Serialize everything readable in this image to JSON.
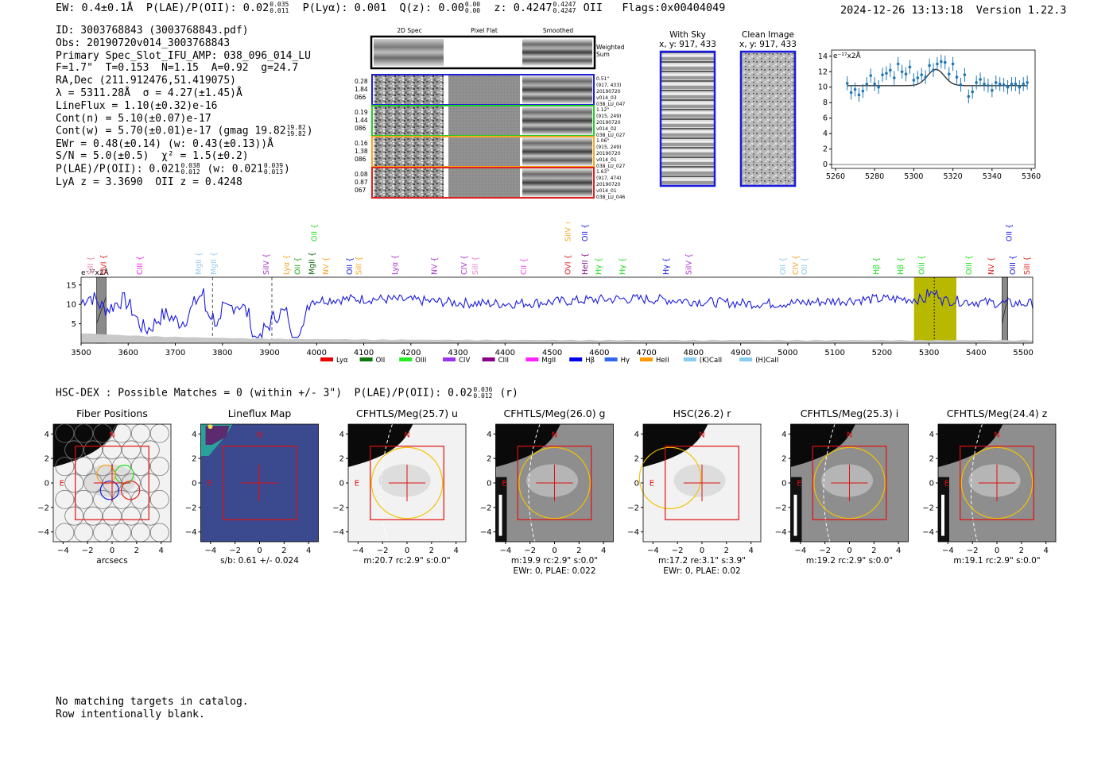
{
  "header": {
    "ew": "EW: 0.4±0.1Å",
    "plae_label": "P(LAE)/P(OII): 0.02",
    "plae_hi": "0.035",
    "plae_lo": "0.011",
    "plya": "P(Lyα): 0.001",
    "qz_label": "Q(z): 0.00",
    "qz_hi": "0.00",
    "qz_lo": "0.00",
    "z_label": "z: 0.4247",
    "z_hi": "0.4247",
    "z_lo": "0.4247",
    "z_line": "OII",
    "flags": "Flags:0x00404049",
    "datetime": "2024-12-26 13:13:18",
    "version": "Version 1.22.3"
  },
  "info": {
    "id": "ID: 3003768843 (3003768843.pdf)",
    "obs": "Obs: 20190720v014_3003768843",
    "primary": "Primary Spec_Slot_IFU_AMP: 038_096_014_LU",
    "fit": "F=1.7\"  T=0.153  N=1.15  A=0.92  g=24.7",
    "radec": "RA,Dec (211.912476,51.419075)",
    "lambda": "λ = 5311.28Å  σ = 4.27(±1.45)Å",
    "lineflux": "LineFlux = 1.10(±0.32)e-16",
    "cont_n": "Cont(n) = 5.10(±0.07)e-17",
    "cont_w_label": "Cont(w) = 5.70(±0.01)e-17 (gmag 19.82",
    "cont_w_hi": "19.82",
    "cont_w_lo": "19.82",
    "cont_w_tail": ")",
    "ewr": "EWr = 0.48(±0.14) (w: 0.43(±0.13))Å",
    "sn": "S/N = 5.0(±0.5)  χ² = 1.5(±0.2)",
    "plae_label": "P(LAE)/P(OII): 0.021",
    "plae_hi": "0.038",
    "plae_lo": "0.012",
    "plae_w": "(w: 0.021",
    "plae_w_hi": "0.039",
    "plae_w_lo": "0.013",
    "plae_w_tail": ")",
    "lyaz": "LyA z = 3.3690  OII z = 0.4248"
  },
  "spec2d": {
    "col_titles": [
      "2D Spec",
      "Pixel Flat",
      "Smoothed"
    ],
    "weighted_sum": [
      "Weighted",
      "Sum"
    ],
    "rows": [
      {
        "left": [
          "0.28",
          "1.84",
          "066"
        ],
        "right": [
          "0.51\"",
          "(917, 433)",
          "20190720",
          "v014_03",
          "038_LU_047"
        ],
        "color": "#1f1fd8"
      },
      {
        "left": [
          "0.19",
          "1.44",
          "086"
        ],
        "right": [
          "1.12\"",
          "(915, 249)",
          "20190720",
          "v014_02",
          "038_LU_027"
        ],
        "color": "#22cc22"
      },
      {
        "left": [
          "0.16",
          "1.38",
          "086"
        ],
        "right": [
          "1.06\"",
          "(915, 249)",
          "20190720",
          "v014_01",
          "038_LU_027"
        ],
        "color": "#f5a623"
      },
      {
        "left": [
          "0.08",
          "0.87",
          "067"
        ],
        "right": [
          "1.63\"",
          "(917, 474)",
          "20190720",
          "v014_01",
          "038_LU_046"
        ],
        "color": "#e02020"
      }
    ]
  },
  "sky": {
    "with_sky_title": "With Sky",
    "with_sky_xy": "x, y: 917, 433",
    "clean_title": "Clean Image",
    "clean_xy": "x, y: 917, 433"
  },
  "chart_data": [
    {
      "type": "scatter",
      "title": "Line fit zoom",
      "ylabel_text": "e⁻¹⁷x2Å",
      "xlim": [
        5258,
        5362
      ],
      "ylim": [
        -0.5,
        14.8
      ],
      "xticks": [
        5260,
        5280,
        5300,
        5320,
        5340,
        5360
      ],
      "yticks": [
        0,
        2,
        4,
        6,
        8,
        10,
        12,
        14
      ],
      "x": [
        5266,
        5268,
        5270,
        5272,
        5274,
        5276,
        5278,
        5280,
        5282,
        5284,
        5286,
        5288,
        5290,
        5292,
        5294,
        5296,
        5298,
        5300,
        5302,
        5304,
        5306,
        5308,
        5310,
        5312,
        5314,
        5316,
        5318,
        5320,
        5322,
        5324,
        5326,
        5328,
        5330,
        5332,
        5334,
        5336,
        5338,
        5340,
        5342,
        5344,
        5346,
        5348,
        5350,
        5352,
        5354,
        5356,
        5358
      ],
      "y": [
        10.5,
        9.3,
        9.7,
        9.0,
        9.5,
        10.4,
        11.5,
        10.4,
        10.0,
        11.6,
        11.8,
        12.2,
        11.2,
        13.0,
        12.0,
        11.7,
        12.6,
        10.9,
        11.2,
        11.6,
        11.3,
        12.8,
        12.2,
        13.0,
        13.3,
        13.2,
        11.7,
        13.0,
        11.3,
        10.3,
        11.6,
        8.8,
        9.4,
        10.6,
        11.0,
        10.4,
        10.2,
        9.6,
        10.6,
        10.4,
        10.3,
        10.0,
        10.4,
        10.4,
        10.0,
        10.4,
        10.6
      ],
      "yerr": 0.9,
      "fit": {
        "continuum": 10.2,
        "amplitude": 2.1,
        "center": 5311.3,
        "sigma": 4.27
      }
    },
    {
      "type": "line",
      "title": "Full spectrum",
      "ylabel_text": "e⁻¹⁷x2Å",
      "xlim": [
        3500,
        5520
      ],
      "ylim": [
        0,
        17
      ],
      "xticks": [
        3500,
        3600,
        3700,
        3800,
        3900,
        4000,
        4100,
        4200,
        4300,
        4400,
        4500,
        4600,
        4700,
        4800,
        4900,
        5000,
        5100,
        5200,
        5300,
        5400,
        5500
      ],
      "yticks": [
        5,
        10,
        15
      ],
      "spectrum_color": "#1a1adf",
      "highlight_band": [
        5268,
        5358
      ],
      "highlight_center": 5311,
      "masked_bands": [
        [
          3533,
          3553
        ],
        [
          5455,
          5467
        ]
      ],
      "dashed_lines": [
        3779,
        3905
      ],
      "line_labels": [
        {
          "name": "SiII",
          "wave": 3520,
          "color": "#ea80b0",
          "tier": 0
        },
        {
          "name": "OVI",
          "wave": 3548,
          "color": "#dd2222",
          "tier": 0
        },
        {
          "name": "CIII",
          "wave": 3625,
          "color": "#ee22ee",
          "tier": 0
        },
        {
          "name": "MgII",
          "wave": 3750,
          "color": "#99ccee",
          "tier": 0
        },
        {
          "name": "MgII",
          "wave": 3782,
          "color": "#99ccee",
          "tier": 0
        },
        {
          "name": "SiIV",
          "wave": 3893,
          "color": "#aa33cc",
          "tier": 0
        },
        {
          "name": "Lyα",
          "wave": 3936,
          "color": "#f5a623",
          "tier": 0
        },
        {
          "name": "OII",
          "wave": 3960,
          "color": "#22aa22",
          "tier": 0
        },
        {
          "name": "MgII",
          "wave": 3990,
          "color": "#116611",
          "tier": 0
        },
        {
          "name": "OII",
          "wave": 3995,
          "color": "#22dd22",
          "tier": 1
        },
        {
          "name": "NV",
          "wave": 4020,
          "color": "#f5a623",
          "tier": 0
        },
        {
          "name": "OII",
          "wave": 4070,
          "color": "#1a1adf",
          "tier": 0
        },
        {
          "name": "SiII",
          "wave": 4090,
          "color": "#f5a623",
          "tier": 0
        },
        {
          "name": "Lyα",
          "wave": 4167,
          "color": "#aa33cc",
          "tier": 0
        },
        {
          "name": "NV",
          "wave": 4250,
          "color": "#aa33cc",
          "tier": 0
        },
        {
          "name": "CIV",
          "wave": 4313,
          "color": "#aa33cc",
          "tier": 0
        },
        {
          "name": "SiII",
          "wave": 4337,
          "color": "#ee80cc",
          "tier": 0
        },
        {
          "name": "CII",
          "wave": 4440,
          "color": "#ee44ee",
          "tier": 0
        },
        {
          "name": "OVI",
          "wave": 4534,
          "color": "#dd2222",
          "tier": 0
        },
        {
          "name": "SiIV",
          "wave": 4534,
          "color": "#f5a623",
          "tier": 1
        },
        {
          "name": "HeII",
          "wave": 4570,
          "color": "#881188",
          "tier": 0
        },
        {
          "name": "OII",
          "wave": 4570,
          "color": "#1a1adf",
          "tier": 1
        },
        {
          "name": "Hγ",
          "wave": 4599,
          "color": "#22dd22",
          "tier": 0
        },
        {
          "name": "Hγ",
          "wave": 4649,
          "color": "#22dd22",
          "tier": 0
        },
        {
          "name": "Hγ",
          "wave": 4742,
          "color": "#1a1adf",
          "tier": 0
        },
        {
          "name": "SiIV",
          "wave": 4790,
          "color": "#aa33cc",
          "tier": 0
        },
        {
          "name": "OII",
          "wave": 4990,
          "color": "#88ccee",
          "tier": 0
        },
        {
          "name": "CIV",
          "wave": 5017,
          "color": "#f5a623",
          "tier": 0
        },
        {
          "name": "OII",
          "wave": 5036,
          "color": "#88ccee",
          "tier": 0
        },
        {
          "name": "Hβ",
          "wave": 5188,
          "color": "#22dd22",
          "tier": 0
        },
        {
          "name": "Hβ",
          "wave": 5240,
          "color": "#22dd22",
          "tier": 0
        },
        {
          "name": "OIII",
          "wave": 5285,
          "color": "#22dd22",
          "tier": 0
        },
        {
          "name": "OIII",
          "wave": 5385,
          "color": "#22dd22",
          "tier": 0
        },
        {
          "name": "NV",
          "wave": 5432,
          "color": "#dd2222",
          "tier": 0
        },
        {
          "name": "OII",
          "wave": 5470,
          "color": "#1a1adf",
          "tier": 1
        },
        {
          "name": "OIII",
          "wave": 5478,
          "color": "#1a1adf",
          "tier": 0
        },
        {
          "name": "SiII",
          "wave": 5508,
          "color": "#dd2222",
          "tier": 0
        }
      ],
      "legend": [
        {
          "name": "Lyα",
          "color": "#ee0000"
        },
        {
          "name": "OII",
          "color": "#117711"
        },
        {
          "name": "OIII",
          "color": "#22ee22"
        },
        {
          "name": "CIV",
          "color": "#9933ee"
        },
        {
          "name": "CIII",
          "color": "#880088"
        },
        {
          "name": "MgII",
          "color": "#ff22ff"
        },
        {
          "name": "Hβ",
          "color": "#0000ee"
        },
        {
          "name": "Hγ",
          "color": "#3366ee"
        },
        {
          "name": "HeII",
          "color": "#ff9900"
        },
        {
          "name": "(K)CaII",
          "color": "#88ccee"
        },
        {
          "name": "(H)CaII",
          "color": "#88ccee"
        }
      ]
    },
    {
      "type": "heatmap",
      "title": "Cutouts",
      "xticks": [
        -4,
        -2,
        0,
        2,
        4
      ],
      "yticks": [
        4,
        2,
        0,
        -2,
        -4
      ],
      "panels": [
        {
          "title": "Fiber Positions",
          "xlabel": "arcsecs",
          "sub": "",
          "kind": "fiber"
        },
        {
          "title": "Lineflux Map",
          "xlabel": "s/b: 0.61 +/- 0.024",
          "sub": "",
          "kind": "lineflux"
        },
        {
          "title": "CFHTLS/Meg(25.7) u",
          "xlabel": "m:20.7 rc:2.9\"  s:0.0\"",
          "sub": "",
          "kind": "u"
        },
        {
          "title": "CFHTLS/Meg(26.0) g",
          "xlabel": "m:19.9 rc:2.9\"  s:0.0\"",
          "sub": "EWr: 0, PLAE: 0.022",
          "kind": "g"
        },
        {
          "title": "HSC(26.2) r",
          "xlabel": "m:17.2  re:3.1\"  s:3.9\"",
          "sub": "EWr: 0, PLAE: 0.02",
          "kind": "r"
        },
        {
          "title": "CFHTLS/Meg(25.3) i",
          "xlabel": "m:19.2 rc:2.9\"  s:0.0\"",
          "sub": "",
          "kind": "i"
        },
        {
          "title": "CFHTLS/Meg(24.4) z",
          "xlabel": "m:19.1 rc:2.9\"  s:0.0\"",
          "sub": "",
          "kind": "z"
        }
      ],
      "compass_n": "N",
      "compass_e": "E"
    }
  ],
  "hsc": {
    "text": "HSC-DEX : Possible Matches = 0 (within +/- 3\")  P(LAE)/P(OII): 0.02",
    "hi": "0.036",
    "lo": "0.012",
    "tail": "(r)"
  },
  "footer": {
    "line1": "No matching targets in catalog.",
    "line2": "Row intentionally blank."
  }
}
